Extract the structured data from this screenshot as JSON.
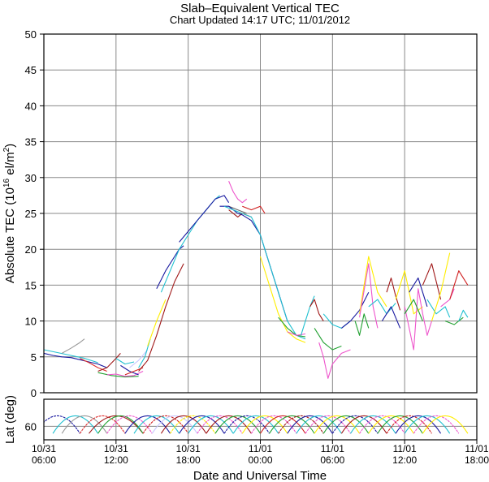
{
  "chart_data": {
    "type": "line",
    "title": "Slab–Equivalent Vertical TEC",
    "subtitle": "Chart Updated 14:17 UTC; 11/01/2012",
    "ylabel_main": "Absolute TEC (10",
    "ylabel_sup": "16",
    "ylabel_mid": " el/m",
    "ylabel_sup2": "2",
    "ylabel_end": ")",
    "ylabel_lat": "Lat (deg)",
    "xlabel": "Date and Universal Time",
    "xlim_hours": [
      0,
      48
    ],
    "ylim": [
      0,
      50
    ],
    "yticks": [
      "0",
      "5",
      "10",
      "15",
      "20",
      "25",
      "30",
      "35",
      "40",
      "45",
      "50"
    ],
    "lat_ylim": [
      30,
      75
    ],
    "lat_ticks": [
      "60"
    ],
    "xticks": [
      {
        "d": "10/31",
        "t": "06:00"
      },
      {
        "d": "10/31",
        "t": "12:00"
      },
      {
        "d": "10/31",
        "t": "18:00"
      },
      {
        "d": "11/01",
        "t": "00:00"
      },
      {
        "d": "11/01",
        "t": "06:00"
      },
      {
        "d": "11/01",
        "t": "12:00"
      },
      {
        "d": "11/01",
        "t": "18:00"
      }
    ],
    "grid": true,
    "series": [
      {
        "color": "#1a1aa0",
        "x": [
          0,
          1,
          2,
          3,
          4,
          5,
          6,
          7
        ],
        "y": [
          5.5,
          5.2,
          5.0,
          4.9,
          4.6,
          4.3,
          4.0,
          3.5
        ]
      },
      {
        "color": "#20c0d0",
        "x": [
          0,
          1.5,
          3,
          4.5,
          6
        ],
        "y": [
          6.0,
          5.6,
          5.2,
          4.8,
          4.2
        ]
      },
      {
        "color": "#999999",
        "x": [
          2,
          3,
          4,
          4.5
        ],
        "y": [
          5.5,
          6.2,
          7.0,
          7.5
        ]
      },
      {
        "color": "#dd3030",
        "x": [
          4,
          5,
          6,
          7
        ],
        "y": [
          4.8,
          4.2,
          3.5,
          3.0
        ]
      },
      {
        "color": "#a01818",
        "x": [
          6,
          7,
          8,
          8.5
        ],
        "y": [
          3.0,
          3.5,
          4.8,
          5.5
        ]
      },
      {
        "color": "#20a030",
        "x": [
          6,
          7.5,
          9,
          10.5
        ],
        "y": [
          2.8,
          2.4,
          2.2,
          2.3
        ]
      },
      {
        "color": "#20c0d0",
        "x": [
          8,
          9,
          10
        ],
        "y": [
          4.8,
          4.0,
          4.3
        ]
      },
      {
        "color": "#ee55cc",
        "x": [
          7,
          8,
          9,
          10,
          11
        ],
        "y": [
          2.5,
          2.6,
          2.3,
          2.4,
          3.0
        ]
      },
      {
        "color": "#1a1aa0",
        "x": [
          8.5,
          9.5,
          10.5
        ],
        "y": [
          3.8,
          3.0,
          2.5
        ]
      },
      {
        "color": "#d02020",
        "x": [
          9,
          10,
          11
        ],
        "y": [
          2.5,
          3.0,
          3.5
        ]
      },
      {
        "color": "#c8c8ff",
        "x": [
          9.5,
          10.5,
          11.5
        ],
        "y": [
          3.5,
          4.5,
          6.0
        ]
      },
      {
        "color": "#20c0d0",
        "x": [
          10.5,
          11.2,
          11.8
        ],
        "y": [
          3.5,
          5.0,
          7.5
        ]
      },
      {
        "color": "#a01818",
        "x": [
          10.5,
          11.5,
          12.5,
          13.5,
          14.5,
          15.5
        ],
        "y": [
          3.0,
          4.5,
          8.0,
          12.0,
          15.5,
          18.0
        ]
      },
      {
        "color": "#1a1aa0",
        "x": [
          12.5,
          13.5,
          14.5,
          15,
          15.5
        ],
        "y": [
          14.5,
          17.0,
          19.0,
          20.0,
          20.5
        ]
      },
      {
        "color": "#ffee00",
        "x": [
          11.5,
          12.5,
          13.5
        ],
        "y": [
          6.5,
          10.0,
          13.0
        ]
      },
      {
        "color": "#20c0d0",
        "x": [
          13,
          14,
          15,
          16,
          17,
          18,
          19,
          19.5
        ],
        "y": [
          14.0,
          17.0,
          20.0,
          22.0,
          24.0,
          25.5,
          27.0,
          27.5
        ]
      },
      {
        "color": "#1a1aa0",
        "x": [
          15,
          16,
          17,
          18,
          19,
          20,
          20.5
        ],
        "y": [
          21.0,
          22.5,
          24.0,
          25.5,
          27.0,
          27.5,
          26.5
        ]
      },
      {
        "color": "#ee55cc",
        "x": [
          20.5,
          21,
          21.5,
          22,
          22.5
        ],
        "y": [
          29.5,
          28.0,
          27.0,
          26.5,
          27.0
        ]
      },
      {
        "color": "#666666",
        "x": [
          20.5,
          21.5,
          22.5
        ],
        "y": [
          26.0,
          25.5,
          25.0
        ]
      },
      {
        "color": "#a01818",
        "x": [
          20.5,
          21.5,
          22,
          23
        ],
        "y": [
          25.5,
          24.5,
          25.0,
          24.5
        ]
      },
      {
        "color": "#1a1aa0",
        "x": [
          19.5,
          20.5,
          21.5,
          22,
          23,
          24,
          25,
          26,
          27
        ],
        "y": [
          26.0,
          26.0,
          25.0,
          24.8,
          24.0,
          22.0,
          18.0,
          14.0,
          10.0
        ]
      },
      {
        "color": "#20c0d0",
        "x": [
          20,
          21,
          22,
          23,
          24,
          25,
          26,
          27,
          28,
          29
        ],
        "y": [
          26.0,
          25.5,
          25.0,
          24.5,
          22.0,
          18.0,
          14.0,
          10.0,
          8.0,
          7.5
        ]
      },
      {
        "color": "#d02020",
        "x": [
          22,
          23,
          24,
          24.5
        ],
        "y": [
          26.0,
          25.5,
          26.0,
          25.0
        ]
      },
      {
        "color": "#ffee00",
        "x": [
          24,
          25,
          26,
          27,
          28,
          29
        ],
        "y": [
          19.0,
          15.0,
          11.0,
          8.5,
          7.5,
          7.0
        ]
      },
      {
        "color": "#20a030",
        "x": [
          26,
          27,
          28,
          29
        ],
        "y": [
          10.5,
          9.0,
          8.0,
          7.8
        ]
      },
      {
        "color": "#ee55cc",
        "x": [
          27,
          28,
          29
        ],
        "y": [
          8.5,
          8.0,
          8.2
        ]
      },
      {
        "color": "#20c0d0",
        "x": [
          28.5,
          29,
          29.5,
          30
        ],
        "y": [
          8.0,
          10.0,
          12.0,
          13.5
        ]
      },
      {
        "color": "#a01818",
        "x": [
          29.5,
          30,
          30.5,
          31
        ],
        "y": [
          12.0,
          13.0,
          11.0,
          10.0
        ]
      },
      {
        "color": "#20a030",
        "x": [
          30,
          31,
          32,
          33
        ],
        "y": [
          9.0,
          7.0,
          6.0,
          6.5
        ]
      },
      {
        "color": "#ee55cc",
        "x": [
          30.5,
          31,
          31.5,
          32,
          33,
          34
        ],
        "y": [
          7.0,
          5.0,
          2.0,
          4.0,
          5.5,
          6.0
        ]
      },
      {
        "color": "#20c0d0",
        "x": [
          31,
          32,
          33,
          34
        ],
        "y": [
          11.0,
          9.5,
          9.0,
          10.0
        ]
      },
      {
        "color": "#1a1aa0",
        "x": [
          33,
          34,
          35,
          36
        ],
        "y": [
          9.0,
          10.0,
          11.5,
          14.0
        ]
      },
      {
        "color": "#ffee00",
        "x": [
          35,
          36,
          37,
          38
        ],
        "y": [
          11.0,
          19.0,
          14.0,
          12.0
        ]
      },
      {
        "color": "#20a030",
        "x": [
          34.5,
          35,
          35.5,
          36
        ],
        "y": [
          10.0,
          8.0,
          11.0,
          9.0
        ]
      },
      {
        "color": "#ee55cc",
        "x": [
          35,
          36,
          36.5,
          37
        ],
        "y": [
          10.5,
          18.0,
          12.0,
          9.0
        ]
      },
      {
        "color": "#20c0d0",
        "x": [
          36,
          37,
          38,
          39
        ],
        "y": [
          12.0,
          13.0,
          11.0,
          12.5
        ]
      },
      {
        "color": "#a01818",
        "x": [
          38,
          38.5,
          39,
          39.5
        ],
        "y": [
          14.0,
          16.0,
          13.5,
          11.5
        ]
      },
      {
        "color": "#1a1aa0",
        "x": [
          37.5,
          38.5,
          39.5
        ],
        "y": [
          10.0,
          12.0,
          9.0
        ]
      },
      {
        "color": "#ffee00",
        "x": [
          39,
          40,
          41,
          42
        ],
        "y": [
          13.0,
          17.0,
          11.0,
          12.0
        ]
      },
      {
        "color": "#ee55cc",
        "x": [
          40,
          41,
          41.5,
          42,
          42.5,
          43
        ],
        "y": [
          12.0,
          6.0,
          14.5,
          11.0,
          8.0,
          10.0
        ]
      },
      {
        "color": "#20a030",
        "x": [
          40,
          41,
          42
        ],
        "y": [
          11.0,
          13.0,
          10.0
        ]
      },
      {
        "color": "#1a1aa0",
        "x": [
          40.5,
          41.5,
          42.5
        ],
        "y": [
          14.0,
          16.0,
          12.0
        ]
      },
      {
        "color": "#a01818",
        "x": [
          42,
          43,
          44
        ],
        "y": [
          15.0,
          18.0,
          13.0
        ]
      },
      {
        "color": "#20c0d0",
        "x": [
          42.5,
          43.5,
          44.5,
          45
        ],
        "y": [
          13.0,
          11.0,
          12.0,
          10.5
        ]
      },
      {
        "color": "#ffee00",
        "x": [
          43,
          44,
          45
        ],
        "y": [
          10.0,
          14.0,
          19.5
        ]
      },
      {
        "color": "#ee55cc",
        "x": [
          44,
          45,
          45.5
        ],
        "y": [
          12.0,
          13.0,
          14.5
        ]
      },
      {
        "color": "#20a030",
        "x": [
          44.5,
          45.5,
          46.5
        ],
        "y": [
          10.0,
          9.5,
          10.5
        ]
      },
      {
        "color": "#d02020",
        "x": [
          45,
          46,
          47
        ],
        "y": [
          13.0,
          17.0,
          15.0
        ]
      },
      {
        "color": "#20c0d0",
        "x": [
          46,
          46.5,
          47
        ],
        "y": [
          10.0,
          11.5,
          10.5
        ]
      }
    ],
    "lat_arcs": [
      {
        "color": "#1a1aa0",
        "x0": -1,
        "x1": 4
      },
      {
        "color": "#20c0d0",
        "x0": 1,
        "x1": 6
      },
      {
        "color": "#999999",
        "x0": 2,
        "x1": 7
      },
      {
        "color": "#dd3030",
        "x0": 4,
        "x1": 9
      },
      {
        "color": "#a01818",
        "x0": 5,
        "x1": 11
      },
      {
        "color": "#20a030",
        "x0": 6,
        "x1": 11
      },
      {
        "color": "#ee55cc",
        "x0": 7,
        "x1": 12
      },
      {
        "color": "#1a1aa0",
        "x0": 9,
        "x1": 14
      },
      {
        "color": "#20c0d0",
        "x0": 10,
        "x1": 15
      },
      {
        "color": "#d02020",
        "x0": 11,
        "x1": 16
      },
      {
        "color": "#c8c8ff",
        "x0": 12,
        "x1": 17
      },
      {
        "color": "#a01818",
        "x0": 13,
        "x1": 18
      },
      {
        "color": "#ffee00",
        "x0": 14,
        "x1": 19
      },
      {
        "color": "#1a1aa0",
        "x0": 15,
        "x1": 20
      },
      {
        "color": "#20c0d0",
        "x0": 16,
        "x1": 21
      },
      {
        "color": "#ee55cc",
        "x0": 17,
        "x1": 22
      },
      {
        "color": "#a01818",
        "x0": 18,
        "x1": 23
      },
      {
        "color": "#20a030",
        "x0": 19,
        "x1": 24
      },
      {
        "color": "#1a1aa0",
        "x0": 20,
        "x1": 25
      },
      {
        "color": "#20c0d0",
        "x0": 21,
        "x1": 26
      },
      {
        "color": "#ffee00",
        "x0": 22,
        "x1": 27
      },
      {
        "color": "#ee55cc",
        "x0": 23,
        "x1": 28
      },
      {
        "color": "#d02020",
        "x0": 24,
        "x1": 29
      },
      {
        "color": "#20a030",
        "x0": 25,
        "x1": 30
      },
      {
        "color": "#a01818",
        "x0": 26,
        "x1": 31
      },
      {
        "color": "#1a1aa0",
        "x0": 27,
        "x1": 32
      },
      {
        "color": "#20c0d0",
        "x0": 28,
        "x1": 33
      },
      {
        "color": "#ee55cc",
        "x0": 29,
        "x1": 34
      },
      {
        "color": "#ffee00",
        "x0": 30,
        "x1": 35
      },
      {
        "color": "#20a030",
        "x0": 31,
        "x1": 36
      },
      {
        "color": "#1a1aa0",
        "x0": 32,
        "x1": 37
      },
      {
        "color": "#a01818",
        "x0": 33,
        "x1": 38
      },
      {
        "color": "#20c0d0",
        "x0": 34,
        "x1": 39
      },
      {
        "color": "#ee55cc",
        "x0": 35,
        "x1": 40
      },
      {
        "color": "#ffee00",
        "x0": 36,
        "x1": 41
      },
      {
        "color": "#20a030",
        "x0": 37,
        "x1": 42
      },
      {
        "color": "#d02020",
        "x0": 38,
        "x1": 43
      },
      {
        "color": "#1a1aa0",
        "x0": 39,
        "x1": 44
      },
      {
        "color": "#20c0d0",
        "x0": 40,
        "x1": 45
      },
      {
        "color": "#ee55cc",
        "x0": 41,
        "x1": 46
      },
      {
        "color": "#ffee00",
        "x0": 42,
        "x1": 47
      }
    ]
  }
}
